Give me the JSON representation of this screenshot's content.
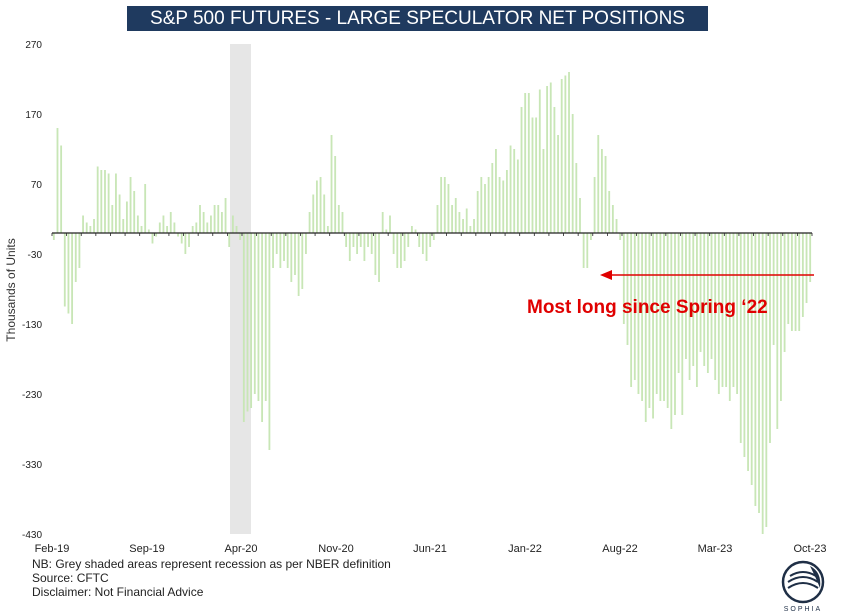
{
  "title": "S&P 500 FUTURES - LARGE SPECULATOR NET POSITIONS",
  "notes": {
    "line1": "NB: Grey shaded areas represent recession as per NBER definition",
    "line2": "Source: CFTC",
    "line3": "Disclaimer: Not Financial Advice"
  },
  "logo_text": "SOPHIA",
  "colors": {
    "bars": "#c8e6b6",
    "title_bg": "#1f3a5f",
    "annotation": "#e00000",
    "recession": "#e6e6e6"
  },
  "chart_data": {
    "type": "bar",
    "title": "S&P 500 FUTURES - LARGE SPECULATOR NET POSITIONS",
    "ylabel": "Thousands of Units",
    "ylim": [
      -430,
      270
    ],
    "yticks": [
      270,
      170,
      70,
      -30,
      -130,
      -230,
      -330,
      -430
    ],
    "xticks": [
      "Feb-19",
      "Sep-19",
      "Apr-20",
      "Nov-20",
      "Jun-21",
      "Jan-22",
      "Aug-22",
      "Mar-23",
      "Oct-23"
    ],
    "recession_shading": [
      "Feb-20",
      "Apr-20"
    ],
    "annotation": "Most long since Spring ‘22",
    "values": [
      -10,
      150,
      125,
      -105,
      -115,
      -130,
      -70,
      -50,
      25,
      15,
      10,
      20,
      95,
      90,
      90,
      85,
      40,
      85,
      55,
      20,
      45,
      80,
      60,
      25,
      10,
      70,
      5,
      -15,
      -5,
      15,
      25,
      10,
      30,
      15,
      -5,
      -15,
      -30,
      -20,
      10,
      15,
      40,
      30,
      15,
      25,
      40,
      40,
      30,
      50,
      -20,
      25,
      10,
      -10,
      -270,
      -255,
      -250,
      -230,
      -240,
      -270,
      -240,
      -310,
      -50,
      -30,
      -50,
      -40,
      -50,
      -70,
      -60,
      -90,
      -80,
      -30,
      30,
      55,
      75,
      80,
      55,
      10,
      140,
      110,
      40,
      30,
      -20,
      -40,
      -20,
      -30,
      -20,
      -40,
      -20,
      -30,
      -60,
      -70,
      30,
      5,
      25,
      -30,
      -50,
      -50,
      -40,
      -20,
      10,
      5,
      -20,
      -30,
      -40,
      -20,
      -10,
      40,
      80,
      80,
      70,
      40,
      50,
      30,
      20,
      35,
      10,
      20,
      60,
      80,
      70,
      80,
      100,
      120,
      80,
      75,
      90,
      125,
      120,
      105,
      180,
      200,
      200,
      165,
      165,
      205,
      120,
      210,
      215,
      180,
      140,
      220,
      225,
      230,
      170,
      100,
      50,
      -50,
      -50,
      -10,
      80,
      140,
      120,
      110,
      60,
      40,
      20,
      -10,
      -130,
      -160,
      -220,
      -210,
      -230,
      -240,
      -270,
      -250,
      -265,
      -230,
      -240,
      -240,
      -250,
      -280,
      -260,
      -200,
      -260,
      -180,
      -210,
      -190,
      -220,
      -170,
      -190,
      -200,
      -180,
      -210,
      -230,
      -220,
      -220,
      -240,
      -220,
      -230,
      -300,
      -320,
      -340,
      -360,
      -390,
      -400,
      -430,
      -420,
      -300,
      -160,
      -280,
      -240,
      -170,
      -130,
      -140,
      -140,
      -140,
      -120,
      -100,
      -70
    ]
  }
}
